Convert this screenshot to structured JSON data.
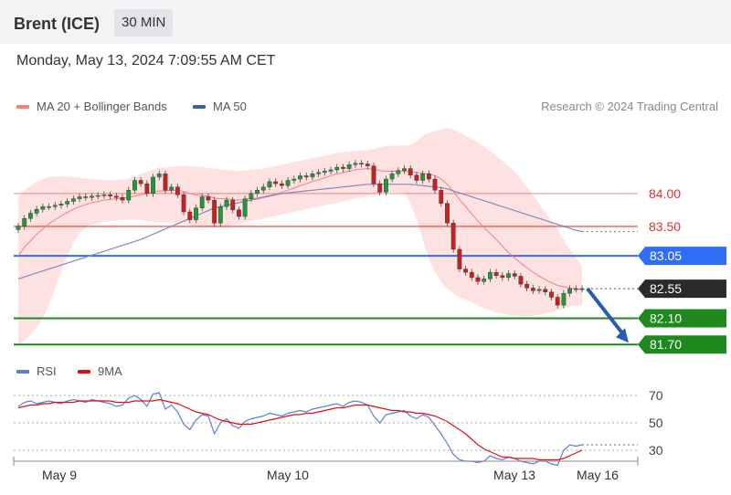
{
  "header": {
    "title": "Brent (ICE)",
    "timeframe": "30 MIN"
  },
  "date_line": "Monday, May 13, 2024 7:09:55 AM CET",
  "legend": {
    "ma20": "MA 20 + Bollinger Bands",
    "ma50": "MA 50",
    "ma20_color": "#f08080",
    "ma50_color": "#3a5ea8",
    "copyright": "Research © 2024 Trading Central"
  },
  "rsi_legend": {
    "rsi": "RSI",
    "ma9": "9MA",
    "rsi_color": "#5b7fd6",
    "ma9_color": "#e01010"
  },
  "chart_data": [
    {
      "type": "candlestick",
      "ylim": [
        81.55,
        85.0
      ],
      "x_ticks": [
        "May 9",
        "May 10",
        "May 13",
        "May 16"
      ],
      "levels": [
        {
          "label": "84.00",
          "value": 84.0,
          "kind": "resistance",
          "color": "#e03030"
        },
        {
          "label": "83.50",
          "value": 83.5,
          "kind": "resistance",
          "color": "#e03030"
        },
        {
          "label": "83.05",
          "value": 83.05,
          "kind": "pivot",
          "color": "#2f6df5"
        },
        {
          "label": "82.55",
          "value": 82.55,
          "kind": "last",
          "color": "#2b2b2b"
        },
        {
          "label": "82.10",
          "value": 82.1,
          "kind": "support",
          "color": "#1e8a1e"
        },
        {
          "label": "81.70",
          "value": 81.7,
          "kind": "support",
          "color": "#1e8a1e"
        }
      ],
      "closes": [
        83.5,
        83.62,
        83.7,
        83.76,
        83.8,
        83.8,
        83.82,
        83.84,
        83.88,
        83.92,
        83.95,
        83.94,
        83.96,
        83.97,
        83.98,
        83.96,
        83.94,
        83.9,
        84.05,
        84.2,
        84.15,
        84.0,
        84.25,
        84.3,
        84.05,
        84.1,
        83.98,
        83.72,
        83.6,
        83.78,
        83.95,
        83.9,
        83.55,
        83.8,
        83.9,
        83.75,
        83.65,
        83.92,
        84.0,
        84.05,
        84.1,
        84.18,
        84.15,
        84.12,
        84.2,
        84.22,
        84.27,
        84.25,
        84.3,
        84.32,
        84.34,
        84.36,
        84.4,
        84.38,
        84.44,
        84.46,
        84.45,
        84.42,
        84.15,
        84.02,
        84.22,
        84.3,
        84.35,
        84.38,
        84.28,
        84.2,
        84.3,
        84.22,
        84.05,
        83.85,
        83.55,
        83.15,
        82.85,
        82.8,
        82.72,
        82.66,
        82.7,
        82.8,
        82.75,
        82.72,
        82.78,
        82.74,
        82.62,
        82.56,
        82.52,
        82.54,
        82.5,
        82.42,
        82.3,
        82.48,
        82.55,
        82.54,
        82.55
      ],
      "ma20": [
        83.05,
        83.18,
        83.28,
        83.38,
        83.46,
        83.54,
        83.6,
        83.66,
        83.71,
        83.76,
        83.8,
        83.83,
        83.86,
        83.88,
        83.9,
        83.91,
        83.92,
        83.93,
        83.94,
        83.96,
        83.98,
        84.0,
        84.02,
        84.04,
        84.04,
        84.05,
        84.05,
        84.03,
        84.0,
        83.98,
        83.97,
        83.96,
        83.93,
        83.92,
        83.92,
        83.91,
        83.9,
        83.91,
        83.92,
        83.93,
        83.95,
        83.97,
        83.99,
        84.02,
        84.05,
        84.08,
        84.12,
        84.15,
        84.18,
        84.21,
        84.24,
        84.27,
        84.3,
        84.32,
        84.34,
        84.36,
        84.37,
        84.38,
        84.37,
        84.35,
        84.34,
        84.34,
        84.34,
        84.34,
        84.33,
        84.32,
        84.31,
        84.3,
        84.27,
        84.22,
        84.14,
        84.03,
        83.91,
        83.8,
        83.69,
        83.58,
        83.48,
        83.39,
        83.3,
        83.2,
        83.1,
        83.02,
        82.94,
        82.87,
        82.8,
        82.74,
        82.69,
        82.64,
        82.6,
        82.58,
        82.56,
        82.55,
        82.54
      ],
      "bb_upper": [
        83.95,
        84.05,
        84.12,
        84.18,
        84.22,
        84.25,
        84.26,
        84.26,
        84.26,
        84.25,
        84.24,
        84.23,
        84.22,
        84.21,
        84.2,
        84.2,
        84.2,
        84.21,
        84.23,
        84.26,
        84.3,
        84.33,
        84.36,
        84.39,
        84.4,
        84.41,
        84.42,
        84.42,
        84.42,
        84.41,
        84.4,
        84.39,
        84.38,
        84.37,
        84.36,
        84.35,
        84.34,
        84.35,
        84.36,
        84.37,
        84.38,
        84.4,
        84.42,
        84.44,
        84.46,
        84.48,
        84.5,
        84.52,
        84.54,
        84.56,
        84.58,
        84.6,
        84.62,
        84.63,
        84.64,
        84.65,
        84.66,
        84.66,
        84.68,
        84.7,
        84.72,
        84.73,
        84.73,
        84.73,
        84.74,
        84.8,
        84.88,
        84.92,
        84.95,
        84.98,
        85.0,
        84.98,
        84.93,
        84.88,
        84.83,
        84.78,
        84.72,
        84.65,
        84.58,
        84.5,
        84.42,
        84.33,
        84.22,
        84.1,
        83.97,
        83.84,
        83.71,
        83.58,
        83.45,
        83.3,
        83.15,
        83.02,
        82.9
      ],
      "bb_lower": [
        81.7,
        81.75,
        81.85,
        81.95,
        82.1,
        82.3,
        82.55,
        82.8,
        83.05,
        83.25,
        83.4,
        83.48,
        83.53,
        83.55,
        83.57,
        83.58,
        83.59,
        83.6,
        83.6,
        83.6,
        83.6,
        83.58,
        83.57,
        83.56,
        83.56,
        83.56,
        83.55,
        83.54,
        83.52,
        83.5,
        83.49,
        83.49,
        83.48,
        83.48,
        83.5,
        83.52,
        83.54,
        83.56,
        83.58,
        83.6,
        83.62,
        83.64,
        83.66,
        83.68,
        83.7,
        83.72,
        83.74,
        83.76,
        83.78,
        83.8,
        83.82,
        83.84,
        83.86,
        83.88,
        83.9,
        83.92,
        83.94,
        83.96,
        83.98,
        84.0,
        84.02,
        84.02,
        84.02,
        84.0,
        83.85,
        83.6,
        83.3,
        83.0,
        82.8,
        82.65,
        82.55,
        82.48,
        82.42,
        82.38,
        82.34,
        82.3,
        82.25,
        82.22,
        82.19,
        82.17,
        82.15,
        82.14,
        82.13,
        82.13,
        82.14,
        82.15,
        82.17,
        82.19,
        82.22,
        82.25,
        82.28,
        82.29,
        82.3
      ],
      "ma50": [
        82.7,
        82.73,
        82.76,
        82.79,
        82.82,
        82.85,
        82.88,
        82.91,
        82.94,
        82.97,
        83.0,
        83.03,
        83.06,
        83.09,
        83.12,
        83.15,
        83.18,
        83.21,
        83.24,
        83.27,
        83.3,
        83.34,
        83.38,
        83.42,
        83.46,
        83.5,
        83.54,
        83.58,
        83.62,
        83.66,
        83.7,
        83.74,
        83.78,
        83.8,
        83.82,
        83.84,
        83.86,
        83.88,
        83.9,
        83.92,
        83.94,
        83.96,
        83.98,
        84.0,
        84.01,
        84.02,
        84.03,
        84.04,
        84.05,
        84.06,
        84.07,
        84.08,
        84.09,
        84.1,
        84.11,
        84.12,
        84.13,
        84.14,
        84.14,
        84.14,
        84.14,
        84.14,
        84.14,
        84.14,
        84.14,
        84.13,
        84.12,
        84.11,
        84.1,
        84.09,
        84.07,
        84.04,
        84.01,
        83.98,
        83.95,
        83.92,
        83.89,
        83.86,
        83.83,
        83.8,
        83.77,
        83.74,
        83.71,
        83.68,
        83.65,
        83.62,
        83.59,
        83.56,
        83.53,
        83.5,
        83.47,
        83.44,
        83.42
      ],
      "forecast_arrow": {
        "from": 82.55,
        "to": 81.7
      }
    },
    {
      "type": "line",
      "name": "RSI",
      "ylim": [
        20,
        80
      ],
      "y_ticks": [
        "70",
        "50",
        "30"
      ],
      "rsi": [
        62,
        65,
        66,
        64,
        65,
        66,
        65,
        64,
        66,
        67,
        66,
        65,
        67,
        66,
        65,
        64,
        62,
        63,
        68,
        70,
        67,
        62,
        71,
        72,
        60,
        63,
        58,
        49,
        45,
        52,
        56,
        55,
        42,
        50,
        53,
        48,
        46,
        51,
        53,
        54,
        55,
        57,
        56,
        55,
        57,
        58,
        59,
        58,
        60,
        61,
        62,
        63,
        64,
        62,
        65,
        66,
        65,
        63,
        55,
        50,
        56,
        57,
        58,
        59,
        55,
        53,
        56,
        54,
        48,
        42,
        35,
        27,
        23,
        22,
        22,
        21,
        22,
        26,
        24,
        23,
        25,
        24,
        22,
        21,
        20,
        22,
        22,
        20,
        19,
        30,
        34,
        33,
        34
      ],
      "ma9": [
        61,
        62,
        63,
        63,
        64,
        64,
        65,
        65,
        65,
        65,
        66,
        66,
        66,
        66,
        66,
        66,
        65,
        65,
        65,
        66,
        66,
        66,
        66,
        67,
        66,
        65,
        64,
        62,
        60,
        58,
        57,
        56,
        54,
        52,
        51,
        50,
        49,
        49,
        49,
        50,
        51,
        52,
        53,
        54,
        55,
        56,
        56,
        57,
        57,
        58,
        59,
        60,
        61,
        61,
        62,
        63,
        63,
        63,
        62,
        61,
        60,
        59,
        59,
        58,
        58,
        57,
        57,
        56,
        55,
        53,
        51,
        48,
        45,
        42,
        38,
        34,
        31,
        29,
        27,
        25,
        25,
        24,
        24,
        24,
        24,
        23,
        23,
        23,
        23,
        24,
        26,
        28,
        30
      ]
    }
  ]
}
